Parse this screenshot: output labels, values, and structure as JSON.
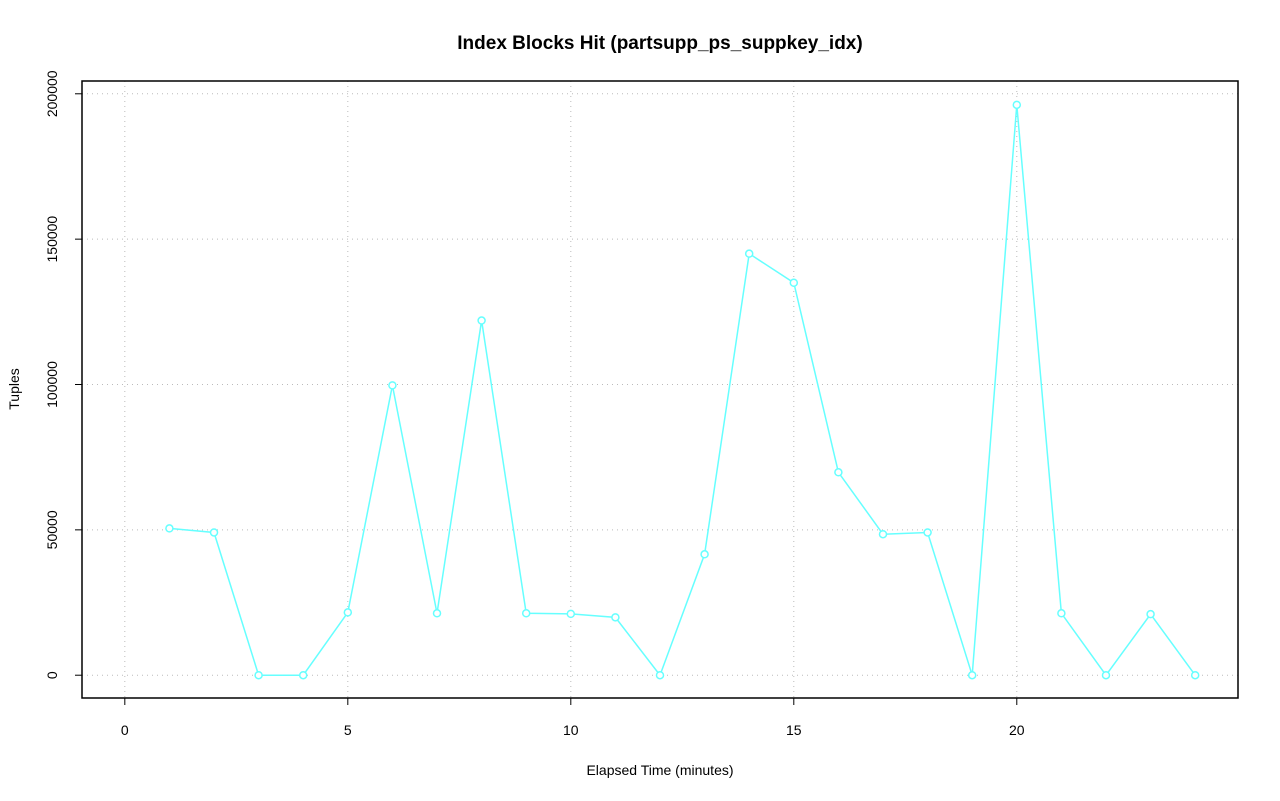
{
  "chart_data": {
    "type": "line",
    "title": "Index Blocks Hit (partsupp_ps_suppkey_idx)",
    "x_label": "Elapsed Time (minutes)",
    "y_label": "Tuples",
    "x": [
      1,
      2,
      3,
      4,
      5,
      6,
      7,
      8,
      9,
      10,
      11,
      12,
      13,
      14,
      15,
      16,
      17,
      18,
      19,
      20,
      21,
      22,
      23,
      24
    ],
    "series": [
      {
        "name": "partsupp_ps_suppkey_idx",
        "color": "#66ffff",
        "values": [
          50500,
          49100,
          0,
          0,
          21600,
          99700,
          21300,
          122000,
          21300,
          21100,
          19900,
          0,
          41600,
          145000,
          135000,
          69800,
          48500,
          49100,
          0,
          196200,
          21300,
          0,
          21000,
          0
        ]
      }
    ],
    "xlim": [
      -0.96,
      24.96
    ],
    "ylim": [
      -7840,
      204400
    ],
    "xticks": [
      0,
      5,
      10,
      15,
      20
    ],
    "yticks": [
      0,
      50000,
      100000,
      150000,
      200000
    ],
    "grid": true
  }
}
